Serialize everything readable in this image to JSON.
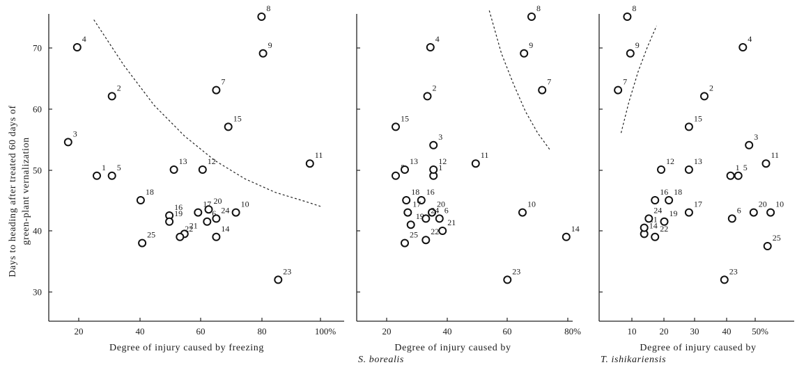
{
  "y_axis_title": {
    "line1": "Days to heading after treated 60 days of",
    "line2": "green-plant vernalization"
  },
  "chart_data": [
    {
      "type": "scatter",
      "xlabel": "Degree of injury caused by freezing",
      "xlabel_italic": "",
      "x_ticks": [
        "20",
        "40",
        "60",
        "80",
        "100%"
      ],
      "y_ticks": [
        "30",
        "40",
        "50",
        "60",
        "70"
      ],
      "xlim": [
        11,
        100
      ],
      "ylim": [
        25,
        76
      ],
      "curve": [
        [
          25,
          74.5
        ],
        [
          35,
          67
        ],
        [
          45,
          60.5
        ],
        [
          55,
          55.5
        ],
        [
          65,
          51.5
        ],
        [
          75,
          48.5
        ],
        [
          85,
          46.3
        ],
        [
          95,
          44.8
        ],
        [
          100,
          44
        ]
      ],
      "points": [
        {
          "label": "1",
          "x": 26,
          "y": 49
        },
        {
          "label": "2",
          "x": 31,
          "y": 62
        },
        {
          "label": "3",
          "x": 16.5,
          "y": 54.5
        },
        {
          "label": "4",
          "x": 19.5,
          "y": 70
        },
        {
          "label": "5",
          "x": 31,
          "y": 49
        },
        {
          "label": "6",
          "x": 62.5,
          "y": 41.5
        },
        {
          "label": "7",
          "x": 65.5,
          "y": 63
        },
        {
          "label": "8",
          "x": 80.5,
          "y": 75
        },
        {
          "label": "9",
          "x": 81,
          "y": 69
        },
        {
          "label": "10",
          "x": 72,
          "y": 43
        },
        {
          "label": "11",
          "x": 96.5,
          "y": 51
        },
        {
          "label": "12",
          "x": 61,
          "y": 50
        },
        {
          "label": "13",
          "x": 51.5,
          "y": 50
        },
        {
          "label": "14",
          "x": 65.5,
          "y": 39
        },
        {
          "label": "15",
          "x": 69.5,
          "y": 57
        },
        {
          "label": "16",
          "x": 50,
          "y": 42.5
        },
        {
          "label": "17",
          "x": 59.5,
          "y": 43
        },
        {
          "label": "18",
          "x": 40.5,
          "y": 45
        },
        {
          "label": "19",
          "x": 50,
          "y": 41.5
        },
        {
          "label": "20",
          "x": 63,
          "y": 43.5
        },
        {
          "label": "21",
          "x": 55,
          "y": 39.5
        },
        {
          "label": "22",
          "x": 53.5,
          "y": 39
        },
        {
          "label": "23",
          "x": 86,
          "y": 32
        },
        {
          "label": "24",
          "x": 65.5,
          "y": 42
        },
        {
          "label": "25",
          "x": 41,
          "y": 38
        }
      ]
    },
    {
      "type": "scatter",
      "xlabel": "Degree of injury caused by",
      "xlabel_italic": "S. borealis",
      "x_ticks": [
        "20",
        "40",
        "60",
        "80%"
      ],
      "y_ticks": [],
      "xlim": [
        12,
        80
      ],
      "ylim": [
        25,
        76
      ],
      "curve": [
        [
          54,
          76
        ],
        [
          58,
          69
        ],
        [
          62,
          64
        ],
        [
          66,
          59.5
        ],
        [
          70,
          56
        ],
        [
          74,
          53.3
        ]
      ],
      "points": [
        {
          "label": "1",
          "x": 35.5,
          "y": 49
        },
        {
          "label": "2",
          "x": 33.5,
          "y": 62
        },
        {
          "label": "3",
          "x": 35.5,
          "y": 54
        },
        {
          "label": "4",
          "x": 34.5,
          "y": 70
        },
        {
          "label": "5",
          "x": 23,
          "y": 49
        },
        {
          "label": "6",
          "x": 37.5,
          "y": 42
        },
        {
          "label": "7",
          "x": 71.5,
          "y": 63
        },
        {
          "label": "8",
          "x": 68,
          "y": 75
        },
        {
          "label": "9",
          "x": 65.5,
          "y": 69
        },
        {
          "label": "10",
          "x": 65,
          "y": 43
        },
        {
          "label": "11",
          "x": 49.5,
          "y": 51
        },
        {
          "label": "12",
          "x": 35.5,
          "y": 50
        },
        {
          "label": "13",
          "x": 26,
          "y": 50
        },
        {
          "label": "14",
          "x": 79.5,
          "y": 39
        },
        {
          "label": "15",
          "x": 23,
          "y": 57
        },
        {
          "label": "16",
          "x": 31.5,
          "y": 45
        },
        {
          "label": "17",
          "x": 27,
          "y": 43
        },
        {
          "label": "18",
          "x": 26.5,
          "y": 45
        },
        {
          "label": "19",
          "x": 28,
          "y": 41
        },
        {
          "label": "20",
          "x": 35,
          "y": 43
        },
        {
          "label": "21",
          "x": 38.5,
          "y": 40
        },
        {
          "label": "22",
          "x": 33,
          "y": 38.5
        },
        {
          "label": "23",
          "x": 60,
          "y": 32
        },
        {
          "label": "24",
          "x": 33,
          "y": 42
        },
        {
          "label": "25",
          "x": 26,
          "y": 38
        }
      ]
    },
    {
      "type": "scatter",
      "xlabel": "Degree of injury caused by",
      "xlabel_italic": "T. ishikariensis",
      "x_ticks": [
        "10",
        "20",
        "30",
        "40",
        "50%"
      ],
      "y_ticks": [],
      "xlim": [
        3,
        56
      ],
      "ylim": [
        25,
        76
      ],
      "curve": [
        [
          6.5,
          56
        ],
        [
          9,
          61
        ],
        [
          12,
          66
        ],
        [
          15,
          70
        ],
        [
          18,
          73.5
        ]
      ],
      "points": [
        {
          "label": "1",
          "x": 42,
          "y": 49
        },
        {
          "label": "2",
          "x": 33.5,
          "y": 62
        },
        {
          "label": "3",
          "x": 48,
          "y": 54
        },
        {
          "label": "4",
          "x": 46,
          "y": 70
        },
        {
          "label": "5",
          "x": 44.5,
          "y": 49
        },
        {
          "label": "6",
          "x": 42.5,
          "y": 42
        },
        {
          "label": "7",
          "x": 5.5,
          "y": 63
        },
        {
          "label": "8",
          "x": 8.5,
          "y": 75
        },
        {
          "label": "9",
          "x": 9.5,
          "y": 69
        },
        {
          "label": "10",
          "x": 55,
          "y": 43
        },
        {
          "label": "11",
          "x": 53.5,
          "y": 51
        },
        {
          "label": "12",
          "x": 19.5,
          "y": 50
        },
        {
          "label": "13",
          "x": 28.5,
          "y": 50
        },
        {
          "label": "14",
          "x": 14,
          "y": 39.5
        },
        {
          "label": "15",
          "x": 28.5,
          "y": 57
        },
        {
          "label": "16",
          "x": 17.5,
          "y": 45
        },
        {
          "label": "17",
          "x": 28.5,
          "y": 43
        },
        {
          "label": "18",
          "x": 22,
          "y": 45
        },
        {
          "label": "19",
          "x": 20.5,
          "y": 41.5
        },
        {
          "label": "20",
          "x": 49.5,
          "y": 43
        },
        {
          "label": "21",
          "x": 14,
          "y": 40.5
        },
        {
          "label": "22",
          "x": 17.5,
          "y": 39
        },
        {
          "label": "23",
          "x": 40,
          "y": 32
        },
        {
          "label": "24",
          "x": 15.5,
          "y": 42
        },
        {
          "label": "25",
          "x": 54,
          "y": 37.5
        }
      ]
    }
  ]
}
